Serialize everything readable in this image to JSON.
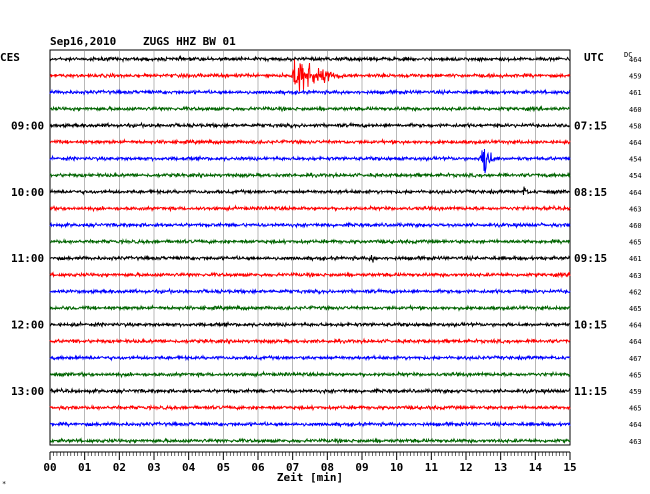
{
  "header": {
    "date": "Sep16,2010",
    "station": "ZUGS HHZ BW 01",
    "left_label": "CES",
    "right_label": "UTC",
    "dc_label": "DC"
  },
  "chart_data": {
    "type": "line",
    "title": "Sep16,2010   ZUGS HHZ BW 01",
    "xlabel": "Zeit [min]",
    "xlim": [
      0,
      15
    ],
    "x_ticks": [
      "00",
      "01",
      "02",
      "03",
      "04",
      "05",
      "06",
      "07",
      "08",
      "09",
      "10",
      "11",
      "12",
      "13",
      "14",
      "15"
    ],
    "grid": true,
    "trace_colors": [
      "#000000",
      "#ff0000",
      "#0000ff",
      "#006400"
    ],
    "left_time_labels": [
      {
        "trace": 4,
        "label": "09:00"
      },
      {
        "trace": 8,
        "label": "10:00"
      },
      {
        "trace": 12,
        "label": "11:00"
      },
      {
        "trace": 16,
        "label": "12:00"
      },
      {
        "trace": 20,
        "label": "13:00"
      }
    ],
    "right_time_labels": [
      {
        "trace": 4,
        "label": "07:15"
      },
      {
        "trace": 8,
        "label": "08:15"
      },
      {
        "trace": 12,
        "label": "09:15"
      },
      {
        "trace": 16,
        "label": "10:15"
      },
      {
        "trace": 20,
        "label": "11:15"
      }
    ],
    "dc_values": [
      "464",
      "459",
      "461",
      "460",
      "458",
      "464",
      "454",
      "454",
      "464",
      "463",
      "460",
      "465",
      "461",
      "463",
      "462",
      "465",
      "464",
      "464",
      "467",
      "465",
      "459",
      "465",
      "464",
      "463"
    ],
    "events": [
      {
        "trace": 1,
        "minute": 7.1,
        "amplitude": "large",
        "duration_min": 2.0
      },
      {
        "trace": 6,
        "minute": 12.55,
        "amplitude": "medium",
        "duration_min": 0.4
      },
      {
        "trace": 12,
        "minute": 9.3,
        "amplitude": "small",
        "duration_min": 0.3
      },
      {
        "trace": 8,
        "minute": 13.7,
        "amplitude": "small",
        "duration_min": 0.3
      }
    ]
  }
}
